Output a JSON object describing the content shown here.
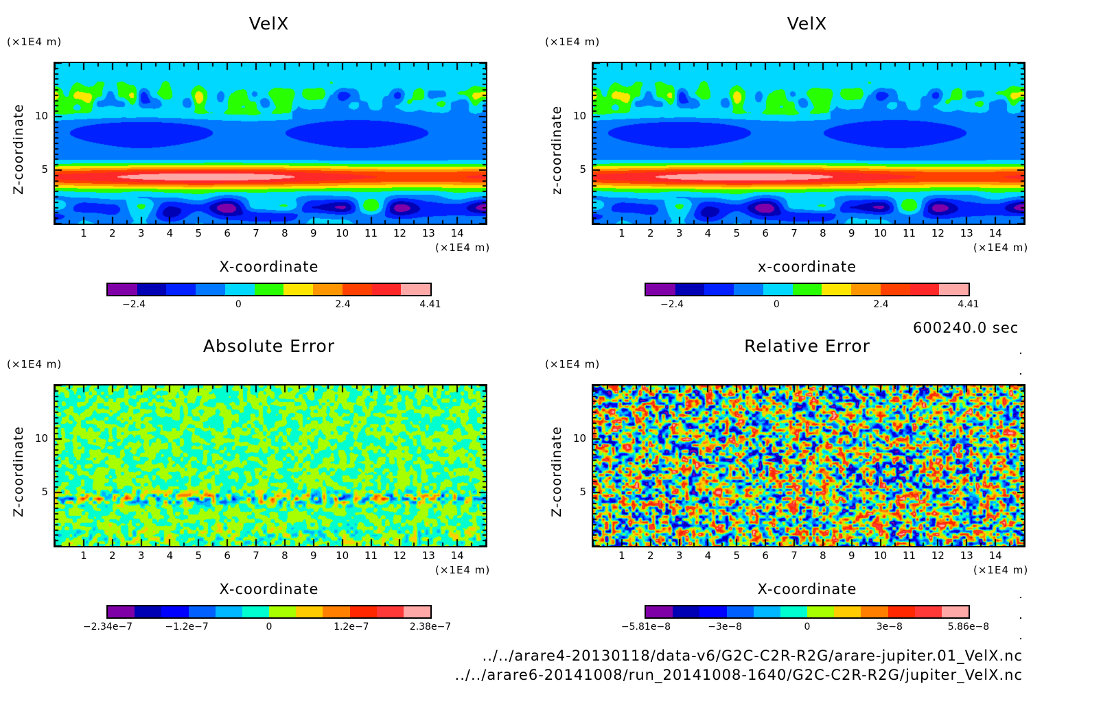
{
  "time_label": "600240.0 sec",
  "file_paths": [
    "../../arare4-20130118/data-v6/G2C-C2R-R2G/arare-jupiter.01_VelX.nc",
    "../../arare6-20141008/run_20141008-1640/G2C-C2R-R2G/jupiter_VelX.nc"
  ],
  "chart_data": [
    {
      "type": "heatmap",
      "title": "VelX",
      "xlabel": "X-coordinate",
      "ylabel": "Z-coordinate",
      "x_unit": "(×1E4 m)",
      "y_unit": "(×1E4 m)",
      "xlim": [
        0,
        15
      ],
      "ylim": [
        0,
        15
      ],
      "x_ticks": [
        "1",
        "2",
        "3",
        "4",
        "5",
        "6",
        "7",
        "8",
        "9",
        "10",
        "11",
        "12",
        "13",
        "14"
      ],
      "y_ticks": [
        "5",
        "10"
      ],
      "colorbar_labels": [
        "−2.4",
        "0",
        "2.4",
        "4.41"
      ],
      "colorbar_range": [
        -3.0,
        4.41
      ],
      "colors": [
        "#8000a8",
        "#0000b4",
        "#0020ff",
        "#0078ff",
        "#00d8ff",
        "#28ff00",
        "#ffe600",
        "#ff9600",
        "#ff4000",
        "#ff2828",
        "#ffa8a8"
      ],
      "field": "velx"
    },
    {
      "type": "heatmap",
      "title": "VelX",
      "xlabel": "x-coordinate",
      "ylabel": "z-coordinate",
      "x_unit": "(×1E4 m)",
      "y_unit": "(×1E4 m)",
      "xlim": [
        0,
        15
      ],
      "ylim": [
        0,
        15
      ],
      "x_ticks": [
        "1",
        "2",
        "3",
        "4",
        "5",
        "6",
        "7",
        "8",
        "9",
        "10",
        "11",
        "12",
        "13",
        "14"
      ],
      "y_ticks": [
        "5",
        "10"
      ],
      "colorbar_labels": [
        "−2.4",
        "0",
        "2.4",
        "4.41"
      ],
      "colorbar_range": [
        -3.0,
        4.41
      ],
      "colors": [
        "#8000a8",
        "#0000b4",
        "#0020ff",
        "#0078ff",
        "#00d8ff",
        "#28ff00",
        "#ffe600",
        "#ff9600",
        "#ff4000",
        "#ff2828",
        "#ffa8a8"
      ],
      "field": "velx"
    },
    {
      "type": "heatmap",
      "title": "Absolute Error",
      "xlabel": "X-coordinate",
      "ylabel": "Z-coordinate",
      "x_unit": "(×1E4 m)",
      "y_unit": "(×1E4 m)",
      "xlim": [
        0,
        15
      ],
      "ylim": [
        0,
        15
      ],
      "x_ticks": [
        "1",
        "2",
        "3",
        "4",
        "5",
        "6",
        "7",
        "8",
        "9",
        "10",
        "11",
        "12",
        "13",
        "14"
      ],
      "y_ticks": [
        "5",
        "10"
      ],
      "colorbar_labels": [
        "−2.34e−7",
        "−1.2e−7",
        "0",
        "1.2e−7",
        "2.38e−7"
      ],
      "colorbar_range": [
        -2.34e-07,
        2.38e-07
      ],
      "colors": [
        "#8000a8",
        "#0000b4",
        "#0000ff",
        "#0060ff",
        "#00b8ff",
        "#00ffd0",
        "#a8ff00",
        "#ffcc00",
        "#ff8000",
        "#ff2800",
        "#ff3838",
        "#ffa8a8"
      ],
      "field": "abserr"
    },
    {
      "type": "heatmap",
      "title": "Relative Error",
      "xlabel": "X-coordinate",
      "ylabel": "Z-coordinate",
      "x_unit": "(×1E4 m)",
      "y_unit": "(×1E4 m)",
      "xlim": [
        0,
        15
      ],
      "ylim": [
        0,
        15
      ],
      "x_ticks": [
        "1",
        "2",
        "3",
        "4",
        "5",
        "6",
        "7",
        "8",
        "9",
        "10",
        "11",
        "12",
        "13",
        "14"
      ],
      "y_ticks": [
        "5",
        "10"
      ],
      "colorbar_labels": [
        "−5.81e−8",
        "−3e−8",
        "0",
        "3e−8",
        "5.86e−8"
      ],
      "colorbar_range": [
        -5.81e-08,
        5.86e-08
      ],
      "colors": [
        "#8000a8",
        "#0000b4",
        "#0000ff",
        "#0060ff",
        "#00b8ff",
        "#00ffd0",
        "#a8ff00",
        "#ffcc00",
        "#ff8000",
        "#ff2800",
        "#ff3838",
        "#ffa8a8"
      ],
      "field": "relerr"
    }
  ]
}
